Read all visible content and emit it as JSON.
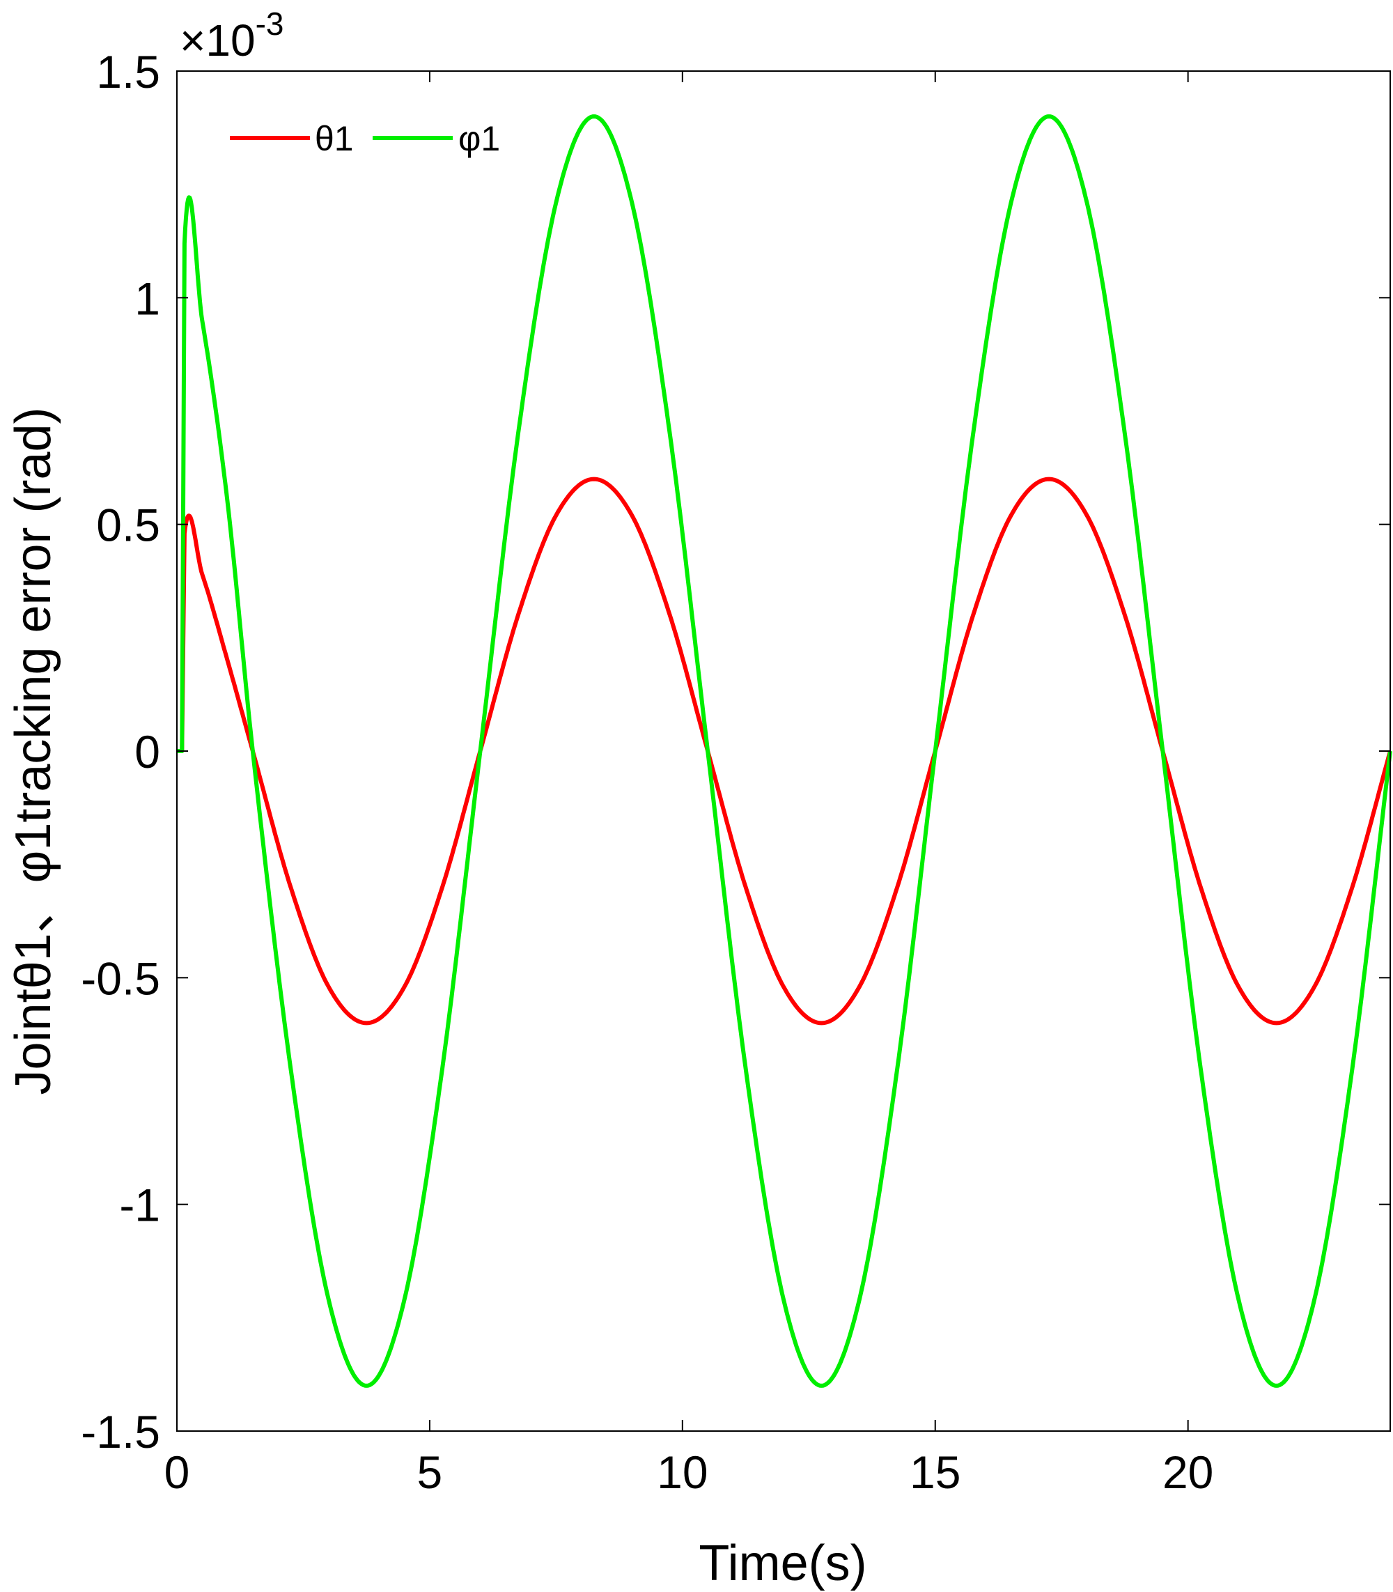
{
  "chart_data": {
    "type": "line",
    "title": "",
    "xlabel": "Time(s)",
    "ylabel": "Jointθ1、φ1tracking error (rad)",
    "y_multiplier_prefix": "×10",
    "y_multiplier_exponent": "-3",
    "xlim": [
      0,
      24
    ],
    "ylim": [
      -1.5,
      1.5
    ],
    "xticks": [
      0,
      5,
      10,
      15,
      20
    ],
    "xtick_labels": [
      "0",
      "5",
      "10",
      "15",
      "20"
    ],
    "yticks": [
      -1.5,
      -1,
      -0.5,
      0,
      0.5,
      1,
      1.5
    ],
    "ytick_labels": [
      "-1.5",
      "-1",
      "-0.5",
      "0",
      "0.5",
      "1",
      "1.5"
    ],
    "grid": false,
    "legend_position": "top-left",
    "series": [
      {
        "name": "θ1",
        "color": "#ff0000",
        "x": [
          0,
          0.05,
          0.1,
          0.15,
          0.5,
          1.0,
          1.5,
          2.25,
          3.0,
          3.75,
          4.5,
          5.25,
          6.0,
          6.75,
          7.5,
          8.25,
          9.0,
          9.75,
          10.5,
          11.25,
          12.0,
          12.75,
          13.5,
          14.25,
          15.0,
          15.75,
          16.5,
          17.25,
          18.0,
          18.75,
          19.5,
          20.25,
          21.0,
          21.75,
          22.5,
          23.25,
          24.0
        ],
        "y": [
          0,
          0,
          0,
          0.48,
          0.39,
          0.2,
          0,
          -0.3,
          -0.52,
          -0.6,
          -0.52,
          -0.3,
          0,
          0.3,
          0.52,
          0.6,
          0.52,
          0.3,
          0,
          -0.3,
          -0.52,
          -0.6,
          -0.52,
          -0.3,
          0,
          0.3,
          0.52,
          0.6,
          0.52,
          0.3,
          0,
          -0.3,
          -0.52,
          -0.6,
          -0.52,
          -0.3,
          0
        ]
      },
      {
        "name": "φ1",
        "color": "#00ee00",
        "x": [
          0,
          0.05,
          0.1,
          0.15,
          0.5,
          1.0,
          1.5,
          2.25,
          3.0,
          3.75,
          4.5,
          5.25,
          6.0,
          6.75,
          7.5,
          8.25,
          9.0,
          9.75,
          10.5,
          11.25,
          12.0,
          12.75,
          13.5,
          14.25,
          15.0,
          15.75,
          16.5,
          17.25,
          18.0,
          18.75,
          19.5,
          20.25,
          21.0,
          21.75,
          22.5,
          23.25,
          24.0
        ],
        "y": [
          0,
          0,
          0,
          1.12,
          0.95,
          0.55,
          0,
          -0.7,
          -1.21,
          -1.4,
          -1.21,
          -0.7,
          0,
          0.7,
          1.21,
          1.4,
          1.21,
          0.7,
          0,
          -0.7,
          -1.21,
          -1.4,
          -1.21,
          -0.7,
          0,
          0.7,
          1.21,
          1.4,
          1.21,
          0.7,
          0,
          -0.7,
          -1.21,
          -1.4,
          -1.21,
          -0.7,
          0
        ]
      }
    ]
  }
}
